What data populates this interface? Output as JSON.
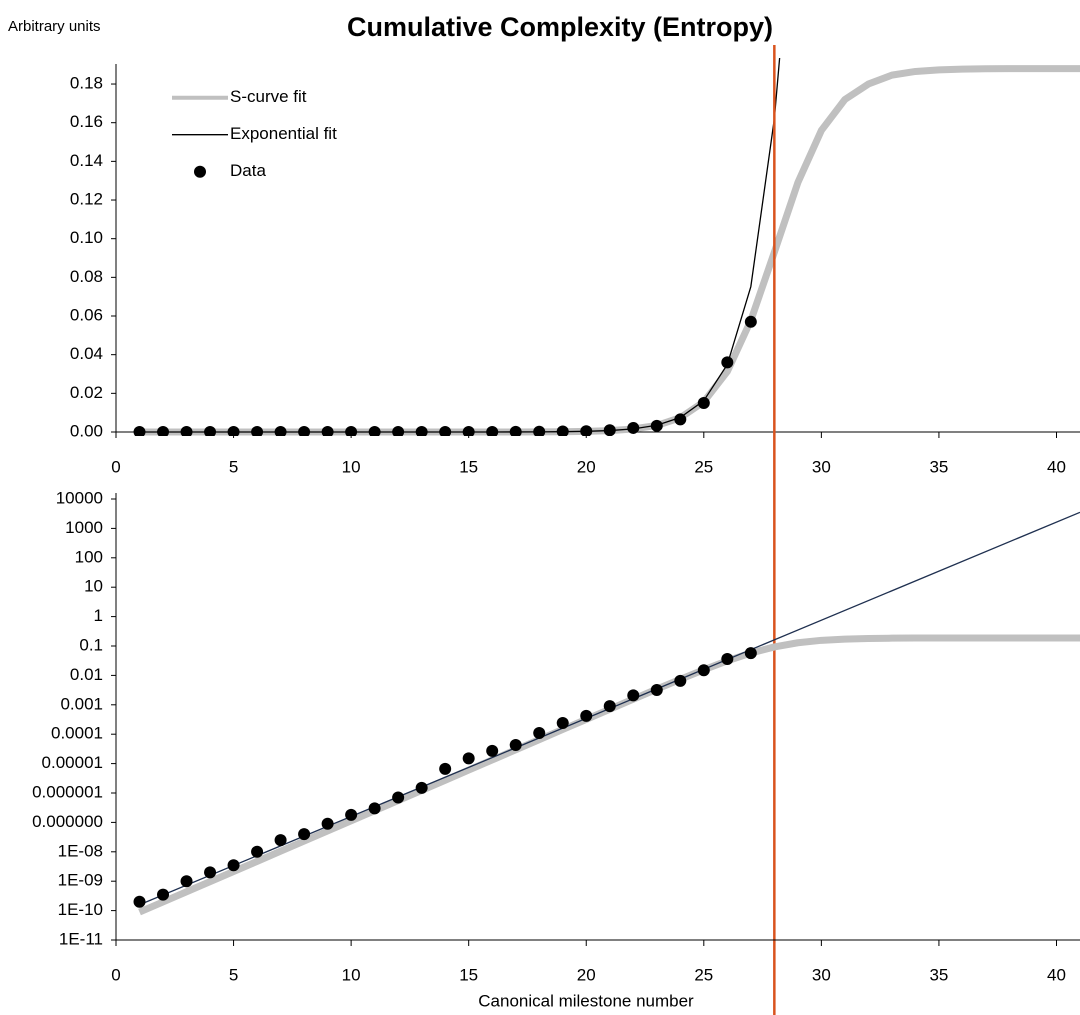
{
  "chart_data": [
    {
      "type": "line",
      "title": "Cumulative Complexity (Entropy)",
      "y_label": "Arbitrary units",
      "xlim": [
        0,
        41
      ],
      "ylim": [
        0,
        0.19
      ],
      "xticks": [
        0,
        5,
        10,
        15,
        20,
        25,
        30,
        35,
        40
      ],
      "yticks": [
        {
          "value": 0,
          "label": "0.00"
        },
        0.02,
        0.04,
        0.06,
        0.08,
        {
          "value": 0.1,
          "label": "0.10"
        },
        0.12,
        0.14,
        0.16,
        0.18
      ],
      "legend": "upper left",
      "marker_x": 28,
      "marker_color": "#d9531e",
      "series": [
        {
          "name": "S-curve fit",
          "color": "#c0c0c0",
          "width": 7,
          "x": [
            1,
            2,
            3,
            4,
            5,
            6,
            7,
            8,
            9,
            10,
            11,
            12,
            13,
            14,
            15,
            16,
            17,
            18,
            19,
            20,
            21,
            22,
            23,
            24,
            25,
            26,
            27,
            28,
            29,
            30,
            31,
            32,
            33,
            34,
            35,
            36,
            37,
            38,
            39,
            40,
            41
          ],
          "values": [
            8.9e-11,
            1.97e-10,
            4.37e-10,
            9.66e-10,
            2.14e-09,
            4.73e-09,
            1.05e-08,
            2.32e-08,
            5.13e-08,
            1.14e-07,
            2.51e-07,
            5.56e-07,
            1.23e-06,
            2.72e-06,
            6.03e-06,
            1.33e-05,
            2.95e-05,
            6.53e-05,
            0.000145,
            0.00032,
            0.000705,
            0.00156,
            0.00341,
            0.00737,
            0.0156,
            0.0313,
            0.0577,
            0.093,
            0.129,
            0.156,
            0.172,
            0.18,
            0.1846,
            0.1865,
            0.1873,
            0.1877,
            0.1879,
            0.188,
            0.188,
            0.188,
            0.188
          ]
        },
        {
          "name": "Exponential fit",
          "color": "#000000",
          "width": 1.3,
          "x": [
            1,
            2,
            3,
            4,
            5,
            6,
            7,
            8,
            9,
            10,
            11,
            12,
            13,
            14,
            15,
            16,
            17,
            18,
            19,
            20,
            21,
            22,
            23,
            24,
            25,
            26,
            27,
            28,
            28.3
          ],
          "values": [
            1.58e-10,
            3.42e-10,
            7.37e-10,
            1.59e-09,
            3.43e-09,
            7.39e-09,
            1.59e-08,
            3.44e-08,
            7.41e-08,
            1.6e-07,
            3.44e-07,
            7.43e-07,
            1.6e-06,
            3.45e-06,
            7.44e-06,
            1.61e-05,
            3.46e-05,
            7.46e-05,
            0.000161,
            0.000347,
            0.000748,
            0.00161,
            0.00348,
            0.0075,
            0.0162,
            0.0349,
            0.0752,
            0.162,
            0.204
          ]
        },
        {
          "name": "Data",
          "color": "#000000",
          "marker": "circle",
          "x": [
            1,
            2,
            3,
            4,
            5,
            6,
            7,
            8,
            9,
            10,
            11,
            12,
            13,
            14,
            15,
            16,
            17,
            18,
            19,
            20,
            21,
            22,
            23,
            24,
            25,
            26,
            27
          ],
          "values": [
            2e-10,
            3.5e-10,
            1e-09,
            2e-09,
            3.5e-09,
            1e-08,
            2.5e-08,
            4e-08,
            9e-08,
            1.8e-07,
            3e-07,
            7e-07,
            1.5e-06,
            6.6e-06,
            1.5e-05,
            2.7e-05,
            4.3e-05,
            0.00011,
            0.00024,
            0.00042,
            0.0009,
            0.0021,
            0.0032,
            0.0065,
            0.015,
            0.036,
            0.057
          ]
        }
      ]
    },
    {
      "type": "line",
      "log_y": true,
      "x_label": "Canonical milestone number",
      "xlim": [
        0,
        41
      ],
      "ylim": [
        1e-11,
        10000
      ],
      "xticks": [
        0,
        5,
        10,
        15,
        20,
        25,
        30,
        35,
        40
      ],
      "yticks": [
        {
          "value": 1e-11,
          "label": "1E-11"
        },
        {
          "value": 1e-10,
          "label": "1E-10"
        },
        {
          "value": 1e-09,
          "label": "1E-09"
        },
        {
          "value": 1e-08,
          "label": "1E-08"
        },
        {
          "value": 1e-07,
          "label": "0.000000"
        },
        1e-06,
        1e-05,
        0.0001,
        0.001,
        0.01,
        0.1,
        1,
        10,
        100,
        1000,
        10000
      ],
      "series": [
        {
          "color": "#c0c0c0",
          "width": 7,
          "x": [
            1,
            2,
            3,
            4,
            5,
            6,
            7,
            8,
            9,
            10,
            11,
            12,
            13,
            14,
            15,
            16,
            17,
            18,
            19,
            20,
            21,
            22,
            23,
            24,
            25,
            26,
            27,
            28,
            29,
            30,
            31,
            32,
            33,
            34,
            35,
            36,
            37,
            38,
            39,
            40,
            41
          ],
          "values": [
            8.9e-11,
            1.97e-10,
            4.37e-10,
            9.66e-10,
            2.14e-09,
            4.73e-09,
            1.05e-08,
            2.32e-08,
            5.13e-08,
            1.14e-07,
            2.51e-07,
            5.56e-07,
            1.23e-06,
            2.72e-06,
            6.03e-06,
            1.33e-05,
            2.95e-05,
            6.53e-05,
            0.000145,
            0.00032,
            0.000705,
            0.00156,
            0.00341,
            0.00737,
            0.0156,
            0.0313,
            0.0577,
            0.093,
            0.129,
            0.156,
            0.172,
            0.18,
            0.1846,
            0.1865,
            0.1873,
            0.1877,
            0.1879,
            0.188,
            0.188,
            0.188,
            0.188
          ]
        },
        {
          "color": "#1f3050",
          "width": 1.3,
          "x": [
            1,
            41
          ],
          "values": [
            1.58e-10,
            3530
          ]
        },
        {
          "color": "#000000",
          "marker": "circle",
          "x": [
            1,
            2,
            3,
            4,
            5,
            6,
            7,
            8,
            9,
            10,
            11,
            12,
            13,
            14,
            15,
            16,
            17,
            18,
            19,
            20,
            21,
            22,
            23,
            24,
            25,
            26,
            27
          ],
          "values": [
            2e-10,
            3.5e-10,
            1e-09,
            2e-09,
            3.5e-09,
            1e-08,
            2.5e-08,
            4e-08,
            9e-08,
            1.8e-07,
            3e-07,
            7e-07,
            1.5e-06,
            6.6e-06,
            1.5e-05,
            2.7e-05,
            4.3e-05,
            0.00011,
            0.00024,
            0.00042,
            0.0009,
            0.0021,
            0.0032,
            0.0065,
            0.015,
            0.036,
            0.057
          ]
        }
      ]
    }
  ]
}
